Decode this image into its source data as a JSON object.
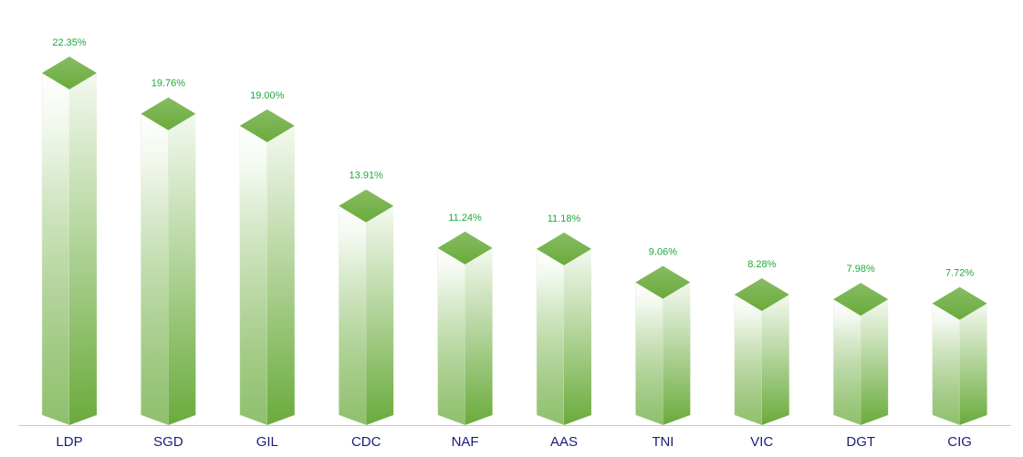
{
  "chart_data": {
    "type": "bar3d",
    "categories": [
      "LDP",
      "SGD",
      "GIL",
      "CDC",
      "NAF",
      "AAS",
      "TNI",
      "VIC",
      "DGT",
      "CIG"
    ],
    "values": [
      22.35,
      19.76,
      19.0,
      13.91,
      11.24,
      11.18,
      9.06,
      8.28,
      7.98,
      7.72
    ],
    "value_labels": [
      "22.35%",
      "19.76%",
      "19.00%",
      "13.91%",
      "11.24%",
      "11.18%",
      "9.06%",
      "8.28%",
      "7.98%",
      "7.72%"
    ],
    "color": "#6aab3c"
  }
}
